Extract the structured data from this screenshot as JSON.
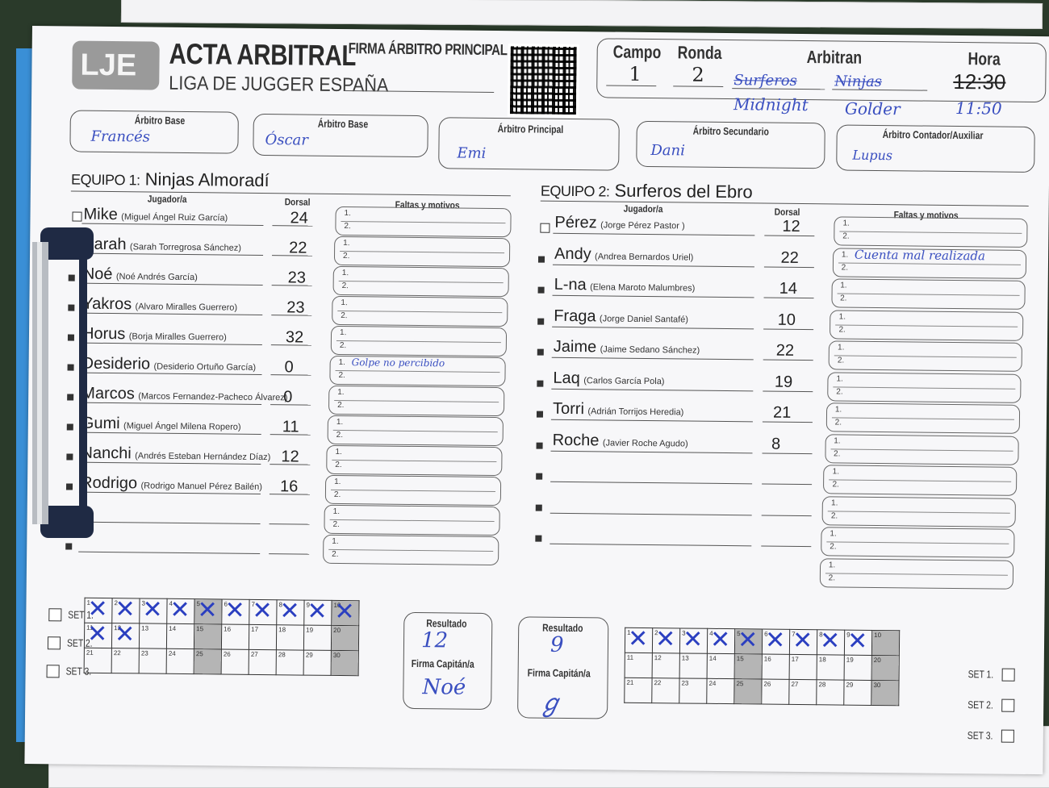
{
  "header": {
    "logo": "LJE",
    "title": "ACTA ARBITRAL",
    "subtitle": "LIGA DE JUGGER ESPAÑA",
    "firma_principal_label": "FIRMA ÁRBITRO PRINCIPAL",
    "campo_label": "Campo",
    "campo": "1",
    "ronda_label": "Ronda",
    "ronda": "2",
    "arbitran_label": "Arbitran",
    "arbitran_struck": [
      "Surferos",
      "Ninjas"
    ],
    "arbitran_written": [
      "Midnight",
      "Golder"
    ],
    "hora_label": "Hora",
    "hora_struck": "12:30",
    "hora_written": "11:50"
  },
  "referees": [
    {
      "label": "Árbitro Base",
      "name": "Francés"
    },
    {
      "label": "Árbitro Base",
      "name": "Óscar"
    },
    {
      "label": "Árbitro Principal",
      "name": "Emi"
    },
    {
      "label": "Árbitro Secundario",
      "name": "Dani"
    },
    {
      "label": "Árbitro Contador/Auxiliar",
      "name": "Lupus"
    }
  ],
  "team1": {
    "label": "EQUIPO 1:",
    "name": "Ninjas Almoradí",
    "col_player": "Jugador/a",
    "col_dorsal": "Dorsal",
    "col_faltas": "Faltas y motivos",
    "players": [
      {
        "nick": "Mike",
        "full": "(Miguel Ángel Ruiz García)",
        "dorsal": "24",
        "falta1": ""
      },
      {
        "nick": "Sarah",
        "full": "(Sarah Torregrosa Sánchez)",
        "dorsal": "22",
        "falta1": ""
      },
      {
        "nick": "Noé",
        "full": "(Noé Andrés García)",
        "dorsal": "23",
        "falta1": ""
      },
      {
        "nick": "Yakros",
        "full": "(Alvaro Miralles Guerrero)",
        "dorsal": "23",
        "falta1": ""
      },
      {
        "nick": "Horus",
        "full": "(Borja Miralles Guerrero)",
        "dorsal": "32",
        "falta1": ""
      },
      {
        "nick": "Desiderio",
        "full": "(Desiderio Ortuño García)",
        "dorsal": "0",
        "falta1": "Golpe no percibido"
      },
      {
        "nick": "Marcos",
        "full": "(Marcos Fernandez-Pacheco Álvarez)",
        "dorsal": "0",
        "falta1": ""
      },
      {
        "nick": "Gumi",
        "full": "(Miguel Ángel Milena Ropero)",
        "dorsal": "11",
        "falta1": ""
      },
      {
        "nick": "Nanchi",
        "full": "(Andrés Esteban Hernández Díaz)",
        "dorsal": "12",
        "falta1": ""
      },
      {
        "nick": "Rodrigo",
        "full": "(Rodrigo Manuel Pérez Bailén)",
        "dorsal": "16",
        "falta1": ""
      }
    ]
  },
  "team2": {
    "label": "EQUIPO 2:",
    "name": "Surferos del Ebro",
    "col_player": "Jugador/a",
    "col_dorsal": "Dorsal",
    "col_faltas": "Faltas y motivos",
    "players": [
      {
        "nick": "Pérez",
        "full": "(Jorge Pérez Pastor )",
        "dorsal": "12",
        "falta1": ""
      },
      {
        "nick": "Andy",
        "full": "(Andrea Bernardos Uriel)",
        "dorsal": "22",
        "falta1": "Cuenta mal realizada"
      },
      {
        "nick": "L-na",
        "full": "(Elena Maroto Malumbres)",
        "dorsal": "14",
        "falta1": ""
      },
      {
        "nick": "Fraga",
        "full": "(Jorge Daniel Santafé)",
        "dorsal": "10",
        "falta1": ""
      },
      {
        "nick": "Jaime",
        "full": "(Jaime Sedano Sánchez)",
        "dorsal": "22",
        "falta1": ""
      },
      {
        "nick": "Laq",
        "full": "(Carlos García Pola)",
        "dorsal": "19",
        "falta1": ""
      },
      {
        "nick": "Torri",
        "full": "(Adrián Torrijos Heredia)",
        "dorsal": "21",
        "falta1": ""
      },
      {
        "nick": "Roche",
        "full": "(Javier Roche Agudo)",
        "dorsal": "8",
        "falta1": ""
      }
    ]
  },
  "score": {
    "set_labels": [
      "SET 1.",
      "SET 2.",
      "SET 3."
    ],
    "resultado_label": "Resultado",
    "firma_capitan_label": "Firma Capitán/a",
    "team1_result": "12",
    "team1_signature": "Noé",
    "team2_result": "9",
    "team1_marks": 12,
    "team2_marks": 9
  }
}
